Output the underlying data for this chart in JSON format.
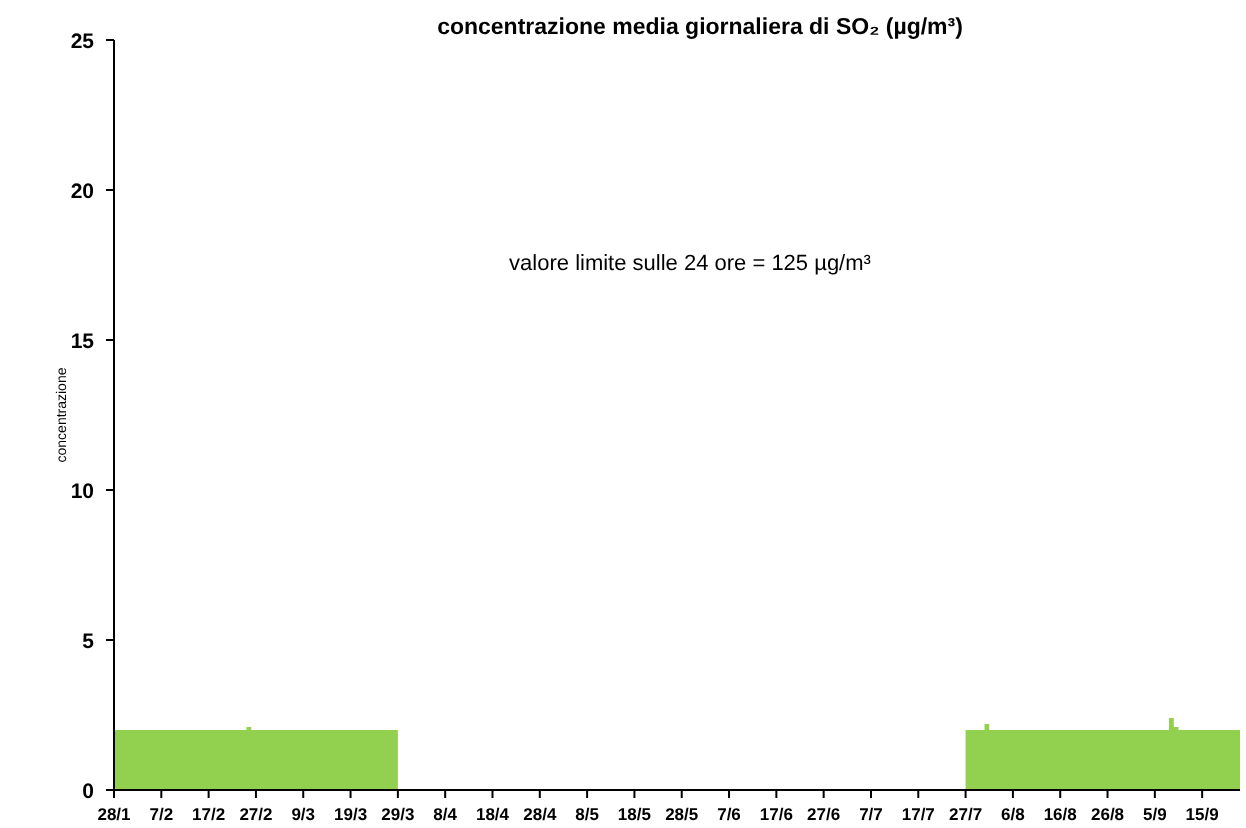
{
  "chart_data": {
    "type": "area",
    "title": "concentrazione media giornaliera di SO₂ (µg/m³)",
    "ylabel": "concentrazione",
    "annotations": [
      "valore limite sulle 24 ore = 125 µg/m³"
    ],
    "color": "#92d050",
    "grid": false,
    "xlim": [
      "--01-28",
      "--09-23"
    ],
    "ylim": [
      0,
      25
    ],
    "yticks": [
      0,
      5,
      10,
      15,
      20,
      25
    ],
    "xticks": [
      {
        "value": "--01-28",
        "label": "28/1"
      },
      {
        "value": "--02-07",
        "label": "7/2"
      },
      {
        "value": "--02-17",
        "label": "17/2"
      },
      {
        "value": "--02-27",
        "label": "27/2"
      },
      {
        "value": "--03-09",
        "label": "9/3"
      },
      {
        "value": "--03-19",
        "label": "19/3"
      },
      {
        "value": "--03-29",
        "label": "29/3"
      },
      {
        "value": "--04-08",
        "label": "8/4"
      },
      {
        "value": "--04-18",
        "label": "18/4"
      },
      {
        "value": "--04-28",
        "label": "28/4"
      },
      {
        "value": "--05-08",
        "label": "8/5"
      },
      {
        "value": "--05-18",
        "label": "18/5"
      },
      {
        "value": "--05-28",
        "label": "28/5"
      },
      {
        "value": "--06-07",
        "label": "7/6"
      },
      {
        "value": "--06-17",
        "label": "17/6"
      },
      {
        "value": "--06-27",
        "label": "27/6"
      },
      {
        "value": "--07-07",
        "label": "7/7"
      },
      {
        "value": "--07-17",
        "label": "17/7"
      },
      {
        "value": "--07-27",
        "label": "27/7"
      },
      {
        "value": "--08-06",
        "label": "6/8"
      },
      {
        "value": "--08-16",
        "label": "16/8"
      },
      {
        "value": "--08-26",
        "label": "26/8"
      },
      {
        "value": "--09-05",
        "label": "5/9"
      },
      {
        "value": "--09-15",
        "label": "15/9"
      }
    ],
    "x": [
      "--01-28",
      "--01-29",
      "--01-30",
      "--01-31",
      "--02-01",
      "--02-02",
      "--02-03",
      "--02-04",
      "--02-05",
      "--02-06",
      "--02-07",
      "--02-08",
      "--02-09",
      "--02-10",
      "--02-11",
      "--02-12",
      "--02-13",
      "--02-14",
      "--02-15",
      "--02-16",
      "--02-17",
      "--02-18",
      "--02-19",
      "--02-20",
      "--02-21",
      "--02-22",
      "--02-23",
      "--02-24",
      "--02-25",
      "--02-26",
      "--02-27",
      "--02-28",
      "--03-01",
      "--03-02",
      "--03-03",
      "--03-04",
      "--03-05",
      "--03-06",
      "--03-07",
      "--03-08",
      "--03-09",
      "--03-10",
      "--03-11",
      "--03-12",
      "--03-13",
      "--03-14",
      "--03-15",
      "--03-16",
      "--03-17",
      "--03-18",
      "--03-19",
      "--03-20",
      "--03-21",
      "--03-22",
      "--03-23",
      "--03-24",
      "--03-25",
      "--03-26",
      "--03-27",
      "--03-28",
      "--07-27",
      "--07-28",
      "--07-29",
      "--07-30",
      "--07-31",
      "--08-01",
      "--08-02",
      "--08-03",
      "--08-04",
      "--08-05",
      "--08-06",
      "--08-07",
      "--08-08",
      "--08-09",
      "--08-10",
      "--08-11",
      "--08-12",
      "--08-13",
      "--08-14",
      "--08-15",
      "--08-16",
      "--08-17",
      "--08-18",
      "--08-19",
      "--08-20",
      "--08-21",
      "--08-22",
      "--08-23",
      "--08-24",
      "--08-25",
      "--08-26",
      "--08-27",
      "--08-28",
      "--08-29",
      "--08-30",
      "--08-31",
      "--09-01",
      "--09-02",
      "--09-03",
      "--09-04",
      "--09-05",
      "--09-06",
      "--09-07",
      "--09-08",
      "--09-09",
      "--09-10",
      "--09-11",
      "--09-12",
      "--09-13",
      "--09-14",
      "--09-15",
      "--09-16",
      "--09-17",
      "--09-18",
      "--09-19",
      "--09-20",
      "--09-21",
      "--09-22"
    ],
    "values": [
      2,
      2,
      2,
      2,
      2,
      2,
      2,
      2,
      2,
      2,
      2,
      2,
      2,
      2,
      2,
      2,
      2,
      2,
      2,
      2,
      2,
      2,
      2,
      2,
      2,
      2,
      2,
      2,
      2.1,
      2,
      2,
      2,
      2,
      2,
      2,
      2,
      2,
      2,
      2,
      2,
      2,
      2,
      2,
      2,
      2,
      2,
      2,
      2,
      2,
      2,
      2,
      2,
      2,
      2,
      2,
      2,
      2,
      2,
      2,
      2,
      2,
      2,
      2,
      2,
      2.2,
      2,
      2,
      2,
      2,
      2,
      2,
      2,
      2,
      2,
      2,
      2,
      2,
      2,
      2,
      2,
      2,
      2,
      2,
      2,
      2,
      2,
      2,
      2,
      2,
      2,
      2,
      2,
      2,
      2,
      2,
      2,
      2,
      2,
      2,
      2,
      2,
      2,
      2,
      2.4,
      2.1,
      2,
      2,
      2,
      2,
      2,
      2,
      2,
      2,
      2,
      2,
      2,
      2,
      2
    ]
  }
}
